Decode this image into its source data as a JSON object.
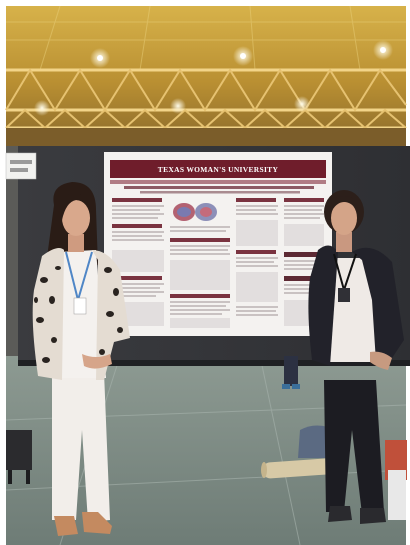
{
  "photo": {
    "poster": {
      "university_name": "TEXAS WOMAN'S UNIVERSITY"
    }
  }
}
